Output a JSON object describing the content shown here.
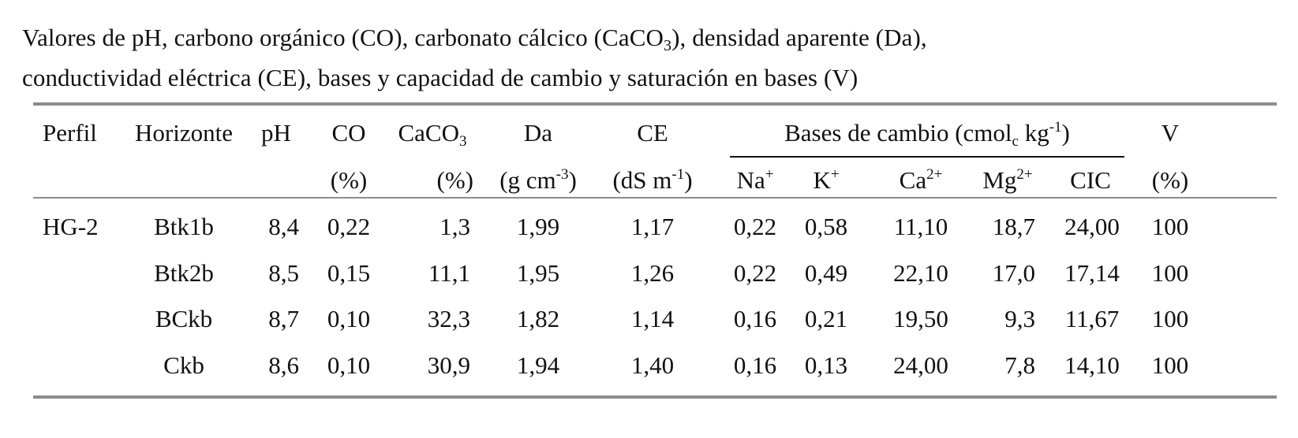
{
  "caption": {
    "line1_a": "Valores de pH, carbono orgánico (CO), carbonato cálcico (CaCO",
    "line1_sub": "3",
    "line1_b": "), densidad aparente (Da),",
    "line2": "conductividad eléctrica (CE), bases y capacidad de cambio y saturación en bases (V)"
  },
  "header": {
    "perfil": "Perfil",
    "horizonte": "Horizonte",
    "ph": "pH",
    "co": "CO",
    "co_unit": "(%)",
    "caco3_a": "CaCO",
    "caco3_sub": "3",
    "caco3_unit": "(%)",
    "da": "Da",
    "da_unit_a": "(g cm",
    "da_unit_sup": "-3",
    "da_unit_b": ")",
    "ce": "CE",
    "ce_unit_a": "(dS m",
    "ce_unit_sup": "-1",
    "ce_unit_b": ")",
    "bases_a": "Bases de cambio (cmol",
    "bases_sub": "c",
    "bases_b": " kg",
    "bases_sup": "-1",
    "bases_c": ")",
    "na": "Na",
    "na_sup": "+",
    "k": "K",
    "k_sup": "+",
    "ca": "Ca",
    "ca_sup": "2+",
    "mg": "Mg",
    "mg_sup": "2+",
    "cic": "CIC",
    "v": "V",
    "v_unit": "(%)"
  },
  "rows": [
    {
      "perfil": "HG-2",
      "horizonte": "Btk1b",
      "ph": "8,4",
      "co": "0,22",
      "caco3": "1,3",
      "da": "1,99",
      "ce": "1,17",
      "na": "0,22",
      "k": "0,58",
      "ca": "11,10",
      "mg": "18,7",
      "cic": "24,00",
      "v": "100"
    },
    {
      "perfil": "",
      "horizonte": "Btk2b",
      "ph": "8,5",
      "co": "0,15",
      "caco3": "11,1",
      "da": "1,95",
      "ce": "1,26",
      "na": "0,22",
      "k": "0,49",
      "ca": "22,10",
      "mg": "17,0",
      "cic": "17,14",
      "v": "100"
    },
    {
      "perfil": "",
      "horizonte": "BCkb",
      "ph": "8,7",
      "co": "0,10",
      "caco3": "32,3",
      "da": "1,82",
      "ce": "1,14",
      "na": "0,16",
      "k": "0,21",
      "ca": "19,50",
      "mg": "9,3",
      "cic": "11,67",
      "v": "100"
    },
    {
      "perfil": "",
      "horizonte": "Ckb",
      "ph": "8,6",
      "co": "0,10",
      "caco3": "30,9",
      "da": "1,94",
      "ce": "1,40",
      "na": "0,16",
      "k": "0,13",
      "ca": "24,00",
      "mg": "7,8",
      "cic": "14,10",
      "v": "100"
    }
  ]
}
